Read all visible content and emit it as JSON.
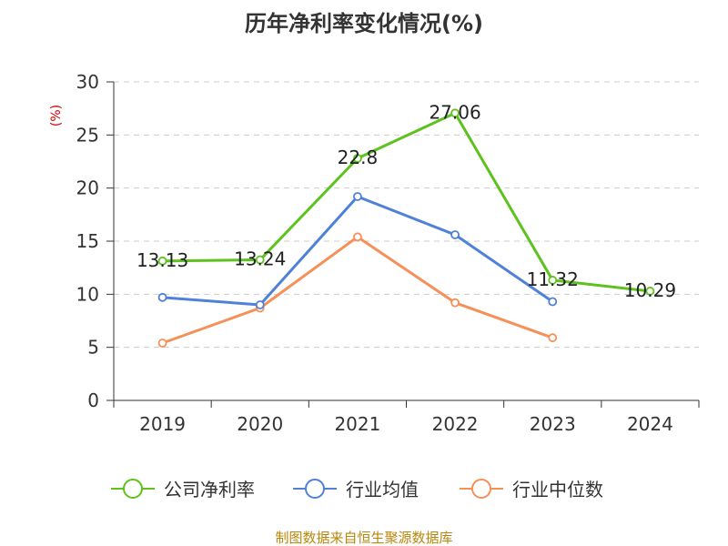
{
  "chart_data": {
    "type": "line",
    "title": "历年净利率变化情况(%)",
    "unit_label": "(%)",
    "categories": [
      "2019",
      "2020",
      "2021",
      "2022",
      "2023",
      "2024"
    ],
    "ylim": [
      0,
      30
    ],
    "yticks": [
      0,
      5,
      10,
      15,
      20,
      25,
      30
    ],
    "grid": true,
    "legend_position": "bottom",
    "series": [
      {
        "name": "公司净利率",
        "color": "#5dc21e",
        "values": [
          13.13,
          13.24,
          22.8,
          27.06,
          11.32,
          10.29
        ],
        "labels": [
          "13.13",
          "13.24",
          "22.8",
          "27.06",
          "11.32",
          "10.29"
        ]
      },
      {
        "name": "行业均值",
        "color": "#4f81d9",
        "values": [
          9.7,
          9.0,
          19.2,
          15.6,
          9.3,
          null
        ]
      },
      {
        "name": "行业中位数",
        "color": "#f59058",
        "values": [
          5.4,
          8.7,
          15.4,
          9.2,
          5.9,
          null
        ]
      }
    ]
  },
  "source": "制图数据来自恒生聚源数据库"
}
